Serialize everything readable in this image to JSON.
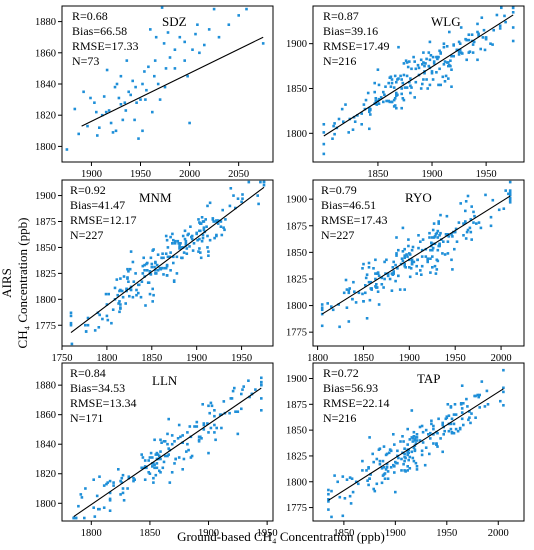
{
  "figure": {
    "xlabel": "Ground-based CH₄ Concentration (ppb)",
    "ylabel_line1": "AIRS",
    "ylabel_line2": "CH₄ Concentration (ppb)"
  },
  "colors": {
    "points": "#1f8fd8",
    "fit": "#000000"
  },
  "chart_data": [
    {
      "type": "scatter",
      "site": "SDZ",
      "stats": [
        "R=0.68",
        "Bias=66.58",
        "RMSE=17.33",
        "N=73"
      ],
      "xlim": [
        1870,
        2085
      ],
      "ylim": [
        1790,
        1890
      ],
      "xticks": [
        1900,
        1950,
        2000,
        2050
      ],
      "yticks": [
        1800,
        1820,
        1840,
        1860,
        1880
      ],
      "fit": [
        [
          1890,
          1813
        ],
        [
          2075,
          1870
        ]
      ],
      "points": [
        [
          1875,
          1798
        ],
        [
          1883,
          1824
        ],
        [
          1887,
          1808
        ],
        [
          1892,
          1835
        ],
        [
          1896,
          1813
        ],
        [
          1899,
          1831
        ],
        [
          1903,
          1828
        ],
        [
          1906,
          1807
        ],
        [
          1908,
          1812
        ],
        [
          1911,
          1820
        ],
        [
          1913,
          1832
        ],
        [
          1916,
          1849
        ],
        [
          1918,
          1823
        ],
        [
          1920,
          1815
        ],
        [
          1922,
          1809
        ],
        [
          1924,
          1838
        ],
        [
          1926,
          1840
        ],
        [
          1928,
          1831
        ],
        [
          1930,
          1845
        ],
        [
          1932,
          1817
        ],
        [
          1934,
          1828
        ],
        [
          1936,
          1855
        ],
        [
          1938,
          1835
        ],
        [
          1940,
          1833
        ],
        [
          1942,
          1842
        ],
        [
          1944,
          1817
        ],
        [
          1946,
          1828
        ],
        [
          1948,
          1805
        ],
        [
          1950,
          1830
        ],
        [
          1952,
          1840
        ],
        [
          1954,
          1848
        ],
        [
          1956,
          1836
        ],
        [
          1958,
          1851
        ],
        [
          1960,
          1875
        ],
        [
          1962,
          1822
        ],
        [
          1964,
          1845
        ],
        [
          1966,
          1870
        ],
        [
          1968,
          1840
        ],
        [
          1970,
          1830
        ],
        [
          1972,
          1889
        ],
        [
          1974,
          1866
        ],
        [
          1976,
          1850
        ],
        [
          1978,
          1873
        ],
        [
          1980,
          1857
        ],
        [
          1985,
          1862
        ],
        [
          1990,
          1870
        ],
        [
          1995,
          1855
        ],
        [
          1998,
          1845
        ],
        [
          2000,
          1815
        ],
        [
          2003,
          1862
        ],
        [
          2006,
          1872
        ],
        [
          2010,
          1860
        ],
        [
          2015,
          1865
        ],
        [
          2020,
          1875
        ],
        [
          2025,
          1888
        ],
        [
          2030,
          1870
        ],
        [
          2040,
          1878
        ],
        [
          2050,
          1884
        ],
        [
          2058,
          1888
        ],
        [
          2075,
          1866
        ],
        [
          1915,
          1822
        ],
        [
          1925,
          1810
        ],
        [
          1935,
          1823
        ],
        [
          1945,
          1838
        ],
        [
          1955,
          1830
        ],
        [
          1965,
          1855
        ],
        [
          1975,
          1838
        ],
        [
          1985,
          1850
        ],
        [
          1995,
          1867
        ],
        [
          2008,
          1878
        ],
        [
          1905,
          1822
        ],
        [
          1930,
          1827
        ],
        [
          1952,
          1810
        ]
      ]
    },
    {
      "type": "scatter",
      "site": "WLG",
      "stats": [
        "R=0.87",
        "Bias=39.16",
        "RMSE=17.49",
        "N=216"
      ],
      "xlim": [
        1790,
        1985
      ],
      "ylim": [
        1768,
        1942
      ],
      "xticks": [
        1850,
        1900,
        1950
      ],
      "yticks": [
        1800,
        1850,
        1900
      ],
      "fit": [
        [
          1800,
          1797
        ],
        [
          1975,
          1932
        ]
      ]
    },
    {
      "type": "scatter",
      "site": "MNM",
      "stats": [
        "R=0.92",
        "Bias=41.47",
        "RMSE=12.17",
        "N=227"
      ],
      "xlim": [
        1750,
        1985
      ],
      "ylim": [
        1755,
        1915
      ],
      "xticks": [
        1750,
        1800,
        1850,
        1900,
        1950
      ],
      "yticks": [
        1775,
        1800,
        1825,
        1850,
        1875,
        1900
      ],
      "fit": [
        [
          1760,
          1768
        ],
        [
          1975,
          1908
        ]
      ]
    },
    {
      "type": "scatter",
      "site": "RYO",
      "stats": [
        "R=0.79",
        "Bias=46.51",
        "RMSE=17.43",
        "N=227"
      ],
      "xlim": [
        1795,
        2025
      ],
      "ylim": [
        1762,
        1918
      ],
      "xticks": [
        1800,
        1850,
        1900,
        1950,
        2000
      ],
      "yticks": [
        1775,
        1800,
        1825,
        1850,
        1875,
        1900
      ],
      "fit": [
        [
          1805,
          1792
        ],
        [
          2010,
          1903
        ]
      ]
    },
    {
      "type": "scatter",
      "site": "LLN",
      "stats": [
        "R=0.84",
        "Bias=34.53",
        "RMSE=13.34",
        "N=171"
      ],
      "xlim": [
        1775,
        1955
      ],
      "ylim": [
        1788,
        1895
      ],
      "xticks": [
        1800,
        1850,
        1900,
        1950
      ],
      "yticks": [
        1800,
        1820,
        1840,
        1860,
        1880
      ],
      "fit": [
        [
          1785,
          1791
        ],
        [
          1945,
          1878
        ]
      ]
    },
    {
      "type": "scatter",
      "site": "TAP",
      "stats": [
        "R=0.72",
        "Bias=56.93",
        "RMSE=22.14",
        "N=216"
      ],
      "xlim": [
        1820,
        2025
      ],
      "ylim": [
        1762,
        1915
      ],
      "xticks": [
        1850,
        1900,
        1950,
        2000
      ],
      "yticks": [
        1775,
        1800,
        1825,
        1850,
        1875,
        1900
      ],
      "fit": [
        [
          1835,
          1782
        ],
        [
          2005,
          1890
        ]
      ]
    }
  ]
}
